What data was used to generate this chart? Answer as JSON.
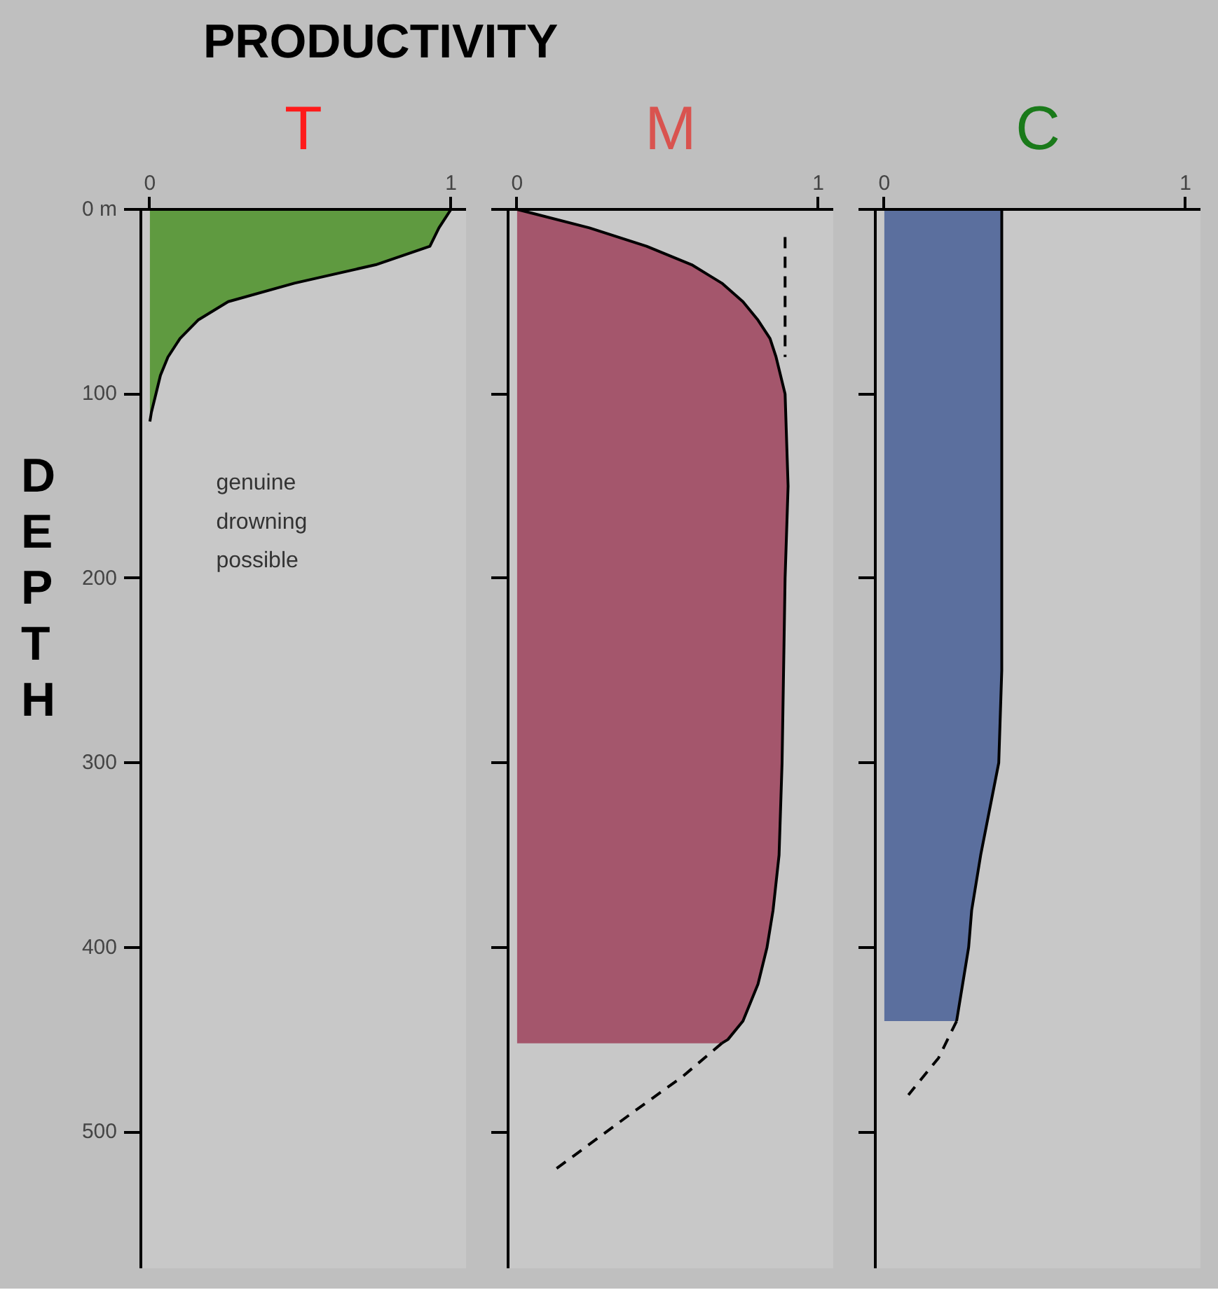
{
  "chart_data": [
    {
      "type": "area",
      "orientation": "horizontal",
      "title": "T",
      "xlabel": "PRODUCTIVITY",
      "ylabel": "DEPTH",
      "xlim": [
        -0.03,
        1.05
      ],
      "ylim": [
        574,
        0
      ],
      "xticks": [
        0,
        1
      ],
      "yticks": [
        {
          "value": 0,
          "label": "0 m"
        },
        100,
        200,
        300,
        400,
        500
      ],
      "grid": false,
      "annotations": [
        "genuine drowning possible"
      ],
      "series": [
        {
          "color": "#5f9a40",
          "x": [
            0,
            10,
            20,
            30,
            40,
            50,
            60,
            70,
            80,
            90,
            100,
            110,
            115
          ],
          "values": [
            1.0,
            0.96,
            0.93,
            0.75,
            0.48,
            0.26,
            0.16,
            0.1,
            0.06,
            0.035,
            0.02,
            0.005,
            0
          ]
        }
      ]
    },
    {
      "type": "area",
      "orientation": "horizontal",
      "title": "M",
      "xlim": [
        -0.03,
        1.05
      ],
      "ylim": [
        574,
        0
      ],
      "xticks": [
        0,
        1
      ],
      "yticks": [
        0,
        100,
        200,
        300,
        400,
        500
      ],
      "tick_labels": "x",
      "grid": false,
      "series": [
        {
          "color": "#a4566c",
          "x": [
            0,
            10,
            20,
            30,
            40,
            50,
            60,
            70,
            80,
            100,
            150,
            200,
            300,
            350,
            380,
            400,
            420,
            440,
            450,
            452
          ],
          "values": [
            0,
            0.24,
            0.43,
            0.58,
            0.68,
            0.75,
            0.8,
            0.84,
            0.86,
            0.89,
            0.9,
            0.89,
            0.88,
            0.87,
            0.85,
            0.83,
            0.8,
            0.75,
            0.7,
            0.68
          ]
        },
        {
          "type": "line",
          "line_style": "dashed",
          "color": "#000000",
          "x": [
            452,
            470,
            490,
            520
          ],
          "values": [
            0.68,
            0.55,
            0.38,
            0.13
          ]
        },
        {
          "type": "line",
          "line_style": "dashed",
          "color": "#000000",
          "x": [
            15,
            80
          ],
          "values": [
            0.89,
            0.89
          ]
        }
      ]
    },
    {
      "type": "area",
      "orientation": "horizontal",
      "title": "C",
      "xlim": [
        -0.03,
        1.05
      ],
      "ylim": [
        574,
        0
      ],
      "xticks": [
        0,
        1
      ],
      "yticks": [
        0,
        100,
        200,
        300,
        400,
        500
      ],
      "tick_labels": "x",
      "grid": false,
      "series": [
        {
          "color": "#5b6f9e",
          "x": [
            0,
            100,
            200,
            230,
            250,
            300,
            350,
            380,
            400,
            420,
            440
          ],
          "values": [
            0.39,
            0.39,
            0.39,
            0.39,
            0.39,
            0.38,
            0.32,
            0.29,
            0.28,
            0.26,
            0.24
          ]
        },
        {
          "type": "line",
          "line_style": "dashed",
          "color": "#000000",
          "x": [
            440,
            460,
            480
          ],
          "values": [
            0.24,
            0.18,
            0.08
          ]
        }
      ]
    }
  ]
}
